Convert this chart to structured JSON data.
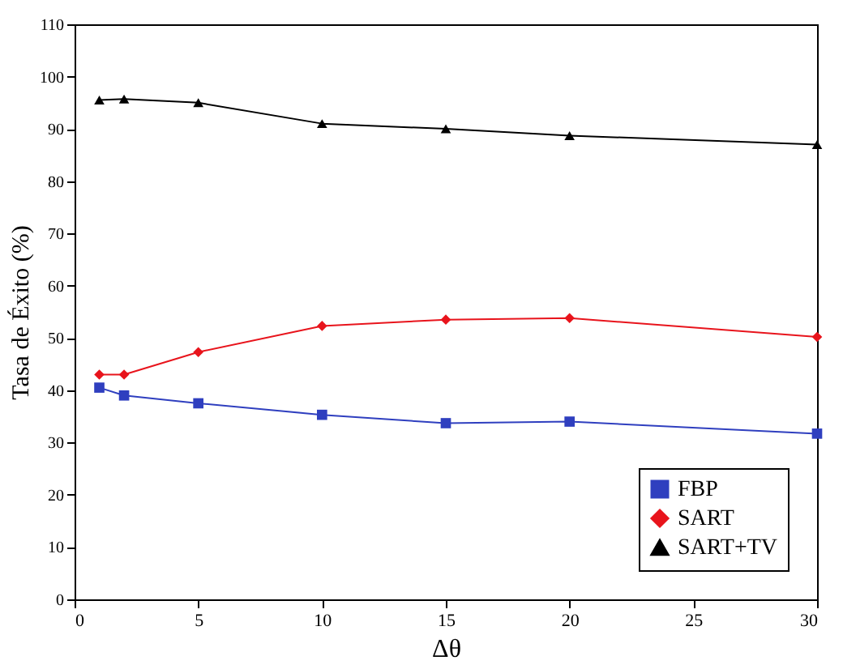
{
  "chart_data": {
    "type": "line",
    "xlabel": "Δθ",
    "ylabel": "Tasa de Éxito (%)",
    "x": [
      1,
      2,
      5,
      10,
      15,
      20,
      30
    ],
    "series": [
      {
        "name": "FBP",
        "color": "#2f3fbf",
        "marker": "square",
        "values": [
          40.5,
          39,
          37.5,
          35.3,
          33.7,
          34,
          31.7
        ]
      },
      {
        "name": "SART",
        "color": "#e8141c",
        "marker": "diamond",
        "values": [
          43,
          43,
          47.3,
          52.3,
          53.5,
          53.8,
          50.2
        ]
      },
      {
        "name": "SART+TV",
        "color": "#000000",
        "marker": "triangle",
        "values": [
          95.5,
          95.7,
          95,
          91,
          90,
          88.7,
          87
        ]
      }
    ],
    "xlim": [
      0,
      30
    ],
    "xticks": [
      0,
      5,
      10,
      15,
      20,
      25,
      30
    ],
    "ylim": [
      0,
      110
    ],
    "yticks": [
      0,
      10,
      20,
      30,
      40,
      50,
      60,
      70,
      80,
      90,
      100,
      110
    ],
    "grid": false,
    "legend": "bottom right",
    "line_style": "solid"
  }
}
